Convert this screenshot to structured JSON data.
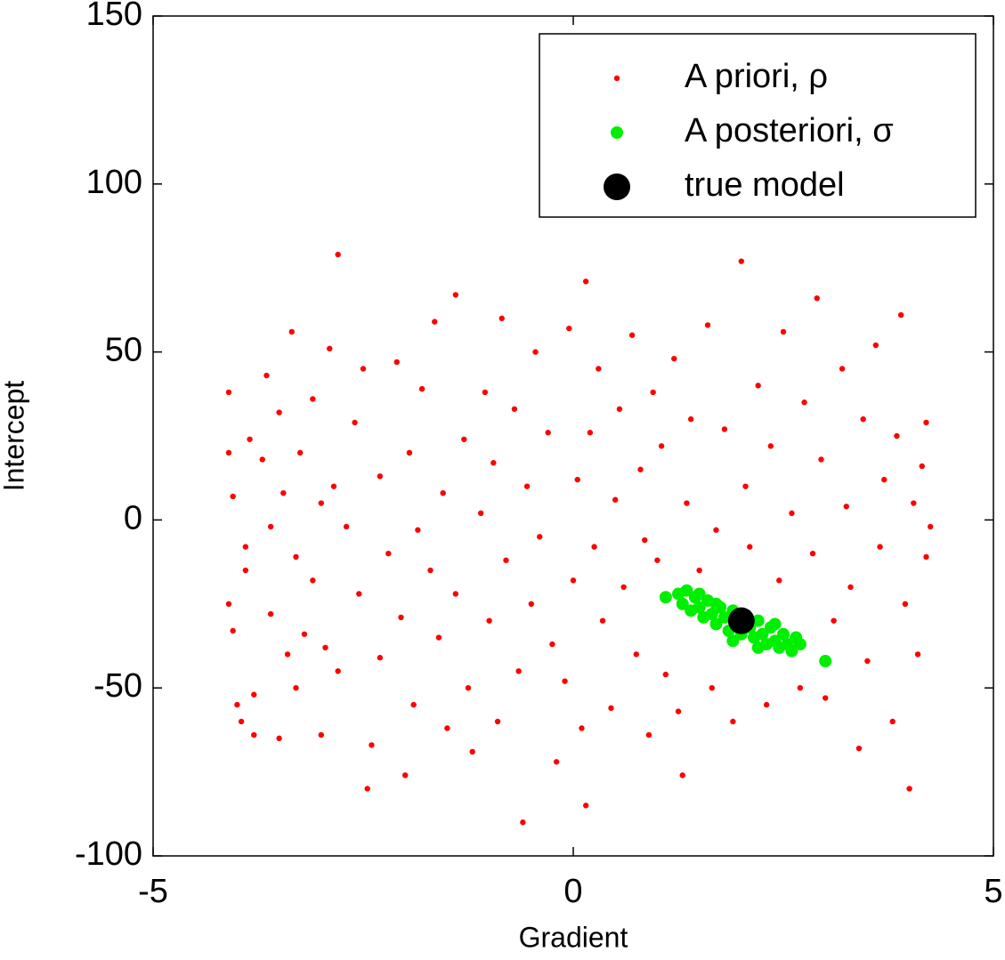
{
  "chart_data": {
    "type": "scatter",
    "xlabel": "Gradient",
    "ylabel": "Intercept",
    "xlim": [
      -5,
      5
    ],
    "xticks": [
      -5,
      0,
      5
    ],
    "ylim": [
      -100,
      150
    ],
    "yticks": [
      -100,
      -50,
      0,
      50,
      100,
      150
    ],
    "legend": "upper right",
    "series": [
      {
        "name": "A priori, ρ",
        "color": "#ff0000",
        "x": [
          -4.1,
          -4.1,
          -4.05,
          -4.1,
          -4.05,
          -4.0,
          -3.95,
          -3.9,
          -3.9,
          -3.85,
          -3.8,
          -3.8,
          -3.7,
          -3.65,
          -3.6,
          -3.6,
          -3.5,
          -3.5,
          -3.45,
          -3.4,
          -3.35,
          -3.3,
          -3.3,
          -3.25,
          -3.2,
          -3.1,
          -3.1,
          -3.0,
          -3.0,
          -2.95,
          -2.9,
          -2.85,
          -2.8,
          -2.8,
          -2.7,
          -2.6,
          -2.55,
          -2.5,
          -2.45,
          -2.4,
          -2.3,
          -2.3,
          -2.2,
          -2.1,
          -2.05,
          -2.0,
          -1.95,
          -1.9,
          -1.85,
          -1.8,
          -1.7,
          -1.65,
          -1.6,
          -1.55,
          -1.5,
          -1.4,
          -1.4,
          -1.3,
          -1.25,
          -1.2,
          -1.1,
          -1.05,
          -1.0,
          -0.95,
          -0.9,
          -0.85,
          -0.8,
          -0.7,
          -0.65,
          -0.6,
          -0.55,
          -0.5,
          -0.45,
          -0.4,
          -0.3,
          -0.25,
          -0.2,
          -0.1,
          -0.05,
          0.0,
          0.05,
          0.1,
          0.15,
          0.15,
          0.2,
          0.25,
          0.3,
          0.35,
          0.45,
          0.5,
          0.55,
          0.6,
          0.7,
          0.75,
          0.8,
          0.85,
          0.9,
          0.95,
          1.0,
          1.05,
          1.1,
          1.2,
          1.25,
          1.3,
          1.35,
          1.4,
          1.5,
          1.6,
          1.65,
          1.7,
          1.8,
          1.9,
          2.0,
          2.05,
          2.1,
          2.2,
          2.3,
          2.35,
          2.45,
          2.5,
          2.6,
          2.7,
          2.75,
          2.85,
          2.9,
          2.95,
          3.0,
          3.1,
          3.2,
          3.25,
          3.3,
          3.4,
          3.45,
          3.5,
          3.6,
          3.65,
          3.7,
          3.8,
          3.85,
          3.9,
          3.95,
          4.0,
          4.05,
          4.1,
          4.15,
          4.2,
          4.2,
          4.25
        ],
        "values": [
          38,
          20,
          7,
          -25,
          -33,
          -55,
          -60,
          -8,
          -15,
          24,
          -52,
          -64,
          18,
          43,
          -2,
          -28,
          -65,
          32,
          8,
          -40,
          56,
          -11,
          -50,
          20,
          -34,
          36,
          -18,
          -64,
          5,
          -38,
          51,
          10,
          79,
          -45,
          -2,
          29,
          -22,
          45,
          -80,
          -67,
          13,
          -41,
          -10,
          47,
          -29,
          -76,
          20,
          -55,
          -3,
          39,
          -15,
          59,
          -35,
          8,
          -62,
          67,
          -22,
          24,
          -50,
          -69,
          2,
          38,
          -30,
          17,
          -60,
          60,
          -12,
          33,
          -45,
          -90,
          10,
          -25,
          50,
          -5,
          26,
          -37,
          -72,
          -48,
          57,
          -18,
          12,
          -62,
          71,
          -85,
          26,
          -8,
          45,
          -30,
          -56,
          6,
          33,
          -20,
          55,
          -40,
          15,
          -6,
          -64,
          38,
          -12,
          22,
          -46,
          48,
          -57,
          -76,
          5,
          30,
          -15,
          58,
          -50,
          -3,
          27,
          -60,
          77,
          10,
          -8,
          40,
          -55,
          22,
          -18,
          56,
          2,
          -50,
          35,
          -10,
          66,
          18,
          -53,
          -30,
          45,
          4,
          -20,
          -68,
          30,
          -42,
          52,
          -8,
          12,
          -60,
          25,
          61,
          -25,
          -80,
          5,
          -40,
          16,
          29,
          -11,
          -2
        ]
      },
      {
        "name": "A posteriori, σ",
        "color": "#00ee00",
        "x": [
          1.1,
          1.25,
          1.3,
          1.35,
          1.4,
          1.45,
          1.5,
          1.55,
          1.6,
          1.65,
          1.7,
          1.75,
          1.8,
          1.85,
          1.9,
          1.95,
          2.0,
          2.05,
          2.1,
          2.15,
          2.2,
          2.25,
          2.3,
          2.35,
          2.4,
          2.45,
          2.5,
          2.55,
          2.6,
          2.65,
          2.7,
          1.5,
          1.7,
          1.9,
          2.2,
          2.4,
          3.0
        ],
        "values": [
          -23,
          -22,
          -25,
          -21,
          -27,
          -23,
          -26,
          -29,
          -24,
          -28,
          -31,
          -26,
          -29,
          -33,
          -27,
          -31,
          -34,
          -29,
          -32,
          -35,
          -30,
          -34,
          -37,
          -32,
          -36,
          -38,
          -34,
          -37,
          -39,
          -35,
          -37,
          -22,
          -25,
          -36,
          -38,
          -31,
          -42
        ]
      },
      {
        "name": "true model",
        "color": "#000000",
        "x": [
          2
        ],
        "values": [
          -30
        ]
      }
    ]
  }
}
